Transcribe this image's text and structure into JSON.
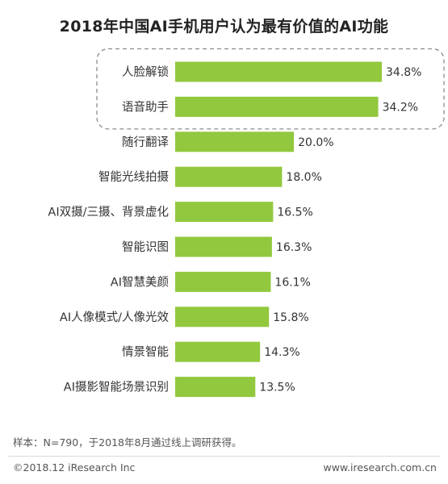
{
  "chart_data": {
    "type": "bar",
    "orientation": "horizontal",
    "title": "2018年中国AI手机用户认为最有价值的AI功能",
    "categories": [
      "人脸解锁",
      "语音助手",
      "随行翻译",
      "智能光线拍摄",
      "AI双摄/三摄、背景虚化",
      "智能识图",
      "AI智慧美颜",
      "AI人像模式/人像光效",
      "情景智能",
      "AI摄影智能场景识别"
    ],
    "values": [
      34.8,
      34.2,
      20.0,
      18.0,
      16.5,
      16.3,
      16.1,
      15.8,
      14.3,
      13.5
    ],
    "value_labels": [
      "34.8%",
      "34.2%",
      "20.0%",
      "18.0%",
      "16.5%",
      "16.3%",
      "16.1%",
      "15.8%",
      "14.3%",
      "13.5%"
    ],
    "unit": "%",
    "highlighted_categories": [
      "人脸解锁",
      "语音助手"
    ],
    "bar_color": "#92c83e",
    "highlight_box_color": "#8c8c8c",
    "xlabel": "",
    "ylabel": ""
  },
  "footer": {
    "note": "样本：N=790，于2018年8月通过线上调研获得。",
    "copyright": "©2018.12 iResearch Inc",
    "website": "www.iresearch.com.cn"
  }
}
